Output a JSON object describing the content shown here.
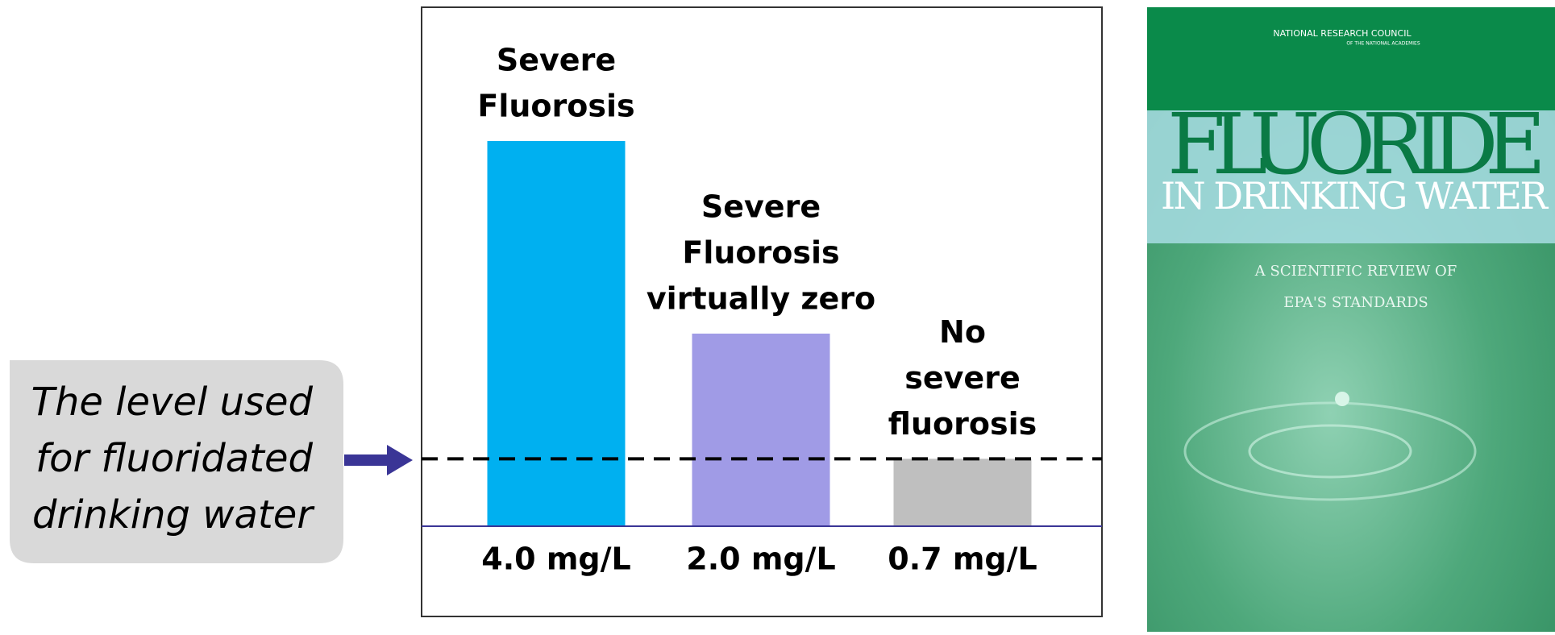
{
  "chart_data": {
    "type": "bar",
    "categories": [
      "4.0 mg/L",
      "2.0 mg/L",
      "0.7 mg/L"
    ],
    "values": [
      4.0,
      2.0,
      0.7
    ],
    "colors": [
      "#00b0f0",
      "#a09be6",
      "#bfbfbf"
    ],
    "bar_labels": [
      [
        "Severe",
        "Fluorosis"
      ],
      [
        "Severe",
        "Fluorosis",
        "virtually zero"
      ],
      [
        "No",
        "severe",
        "fluorosis"
      ]
    ],
    "annotation": [
      "The level used",
      "for fluoridated",
      "drinking water"
    ]
  },
  "book_cover": {
    "publisher": "NATIONAL RESEARCH COUNCIL",
    "publisher_sub": "OF THE NATIONAL ACADEMIES",
    "title": "FLUORIDE",
    "title_sub": "IN DRINKING WATER",
    "subtitle": [
      "A SCIENTIFIC REVIEW OF",
      "EPA'S STANDARDS"
    ]
  }
}
